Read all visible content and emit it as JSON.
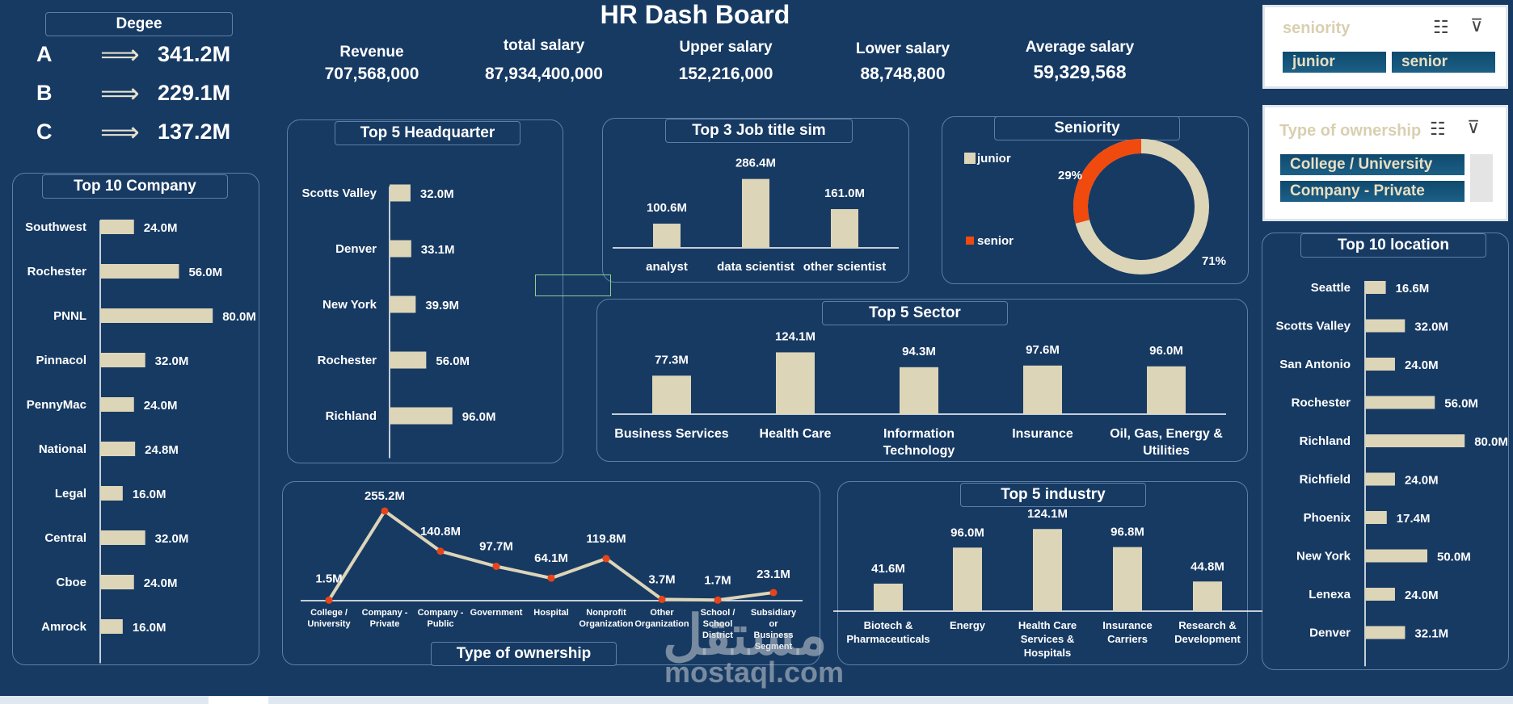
{
  "title": "HR Dash Board",
  "degree": {
    "title": "Degee",
    "arrow": "⟹",
    "rows": [
      {
        "grade": "A",
        "value": "341.2M"
      },
      {
        "grade": "B",
        "value": "229.1M"
      },
      {
        "grade": "C",
        "value": "137.2M"
      }
    ]
  },
  "kpis": [
    {
      "label": "Revenue",
      "value": "707,568,000"
    },
    {
      "label": "total salary",
      "value": "87,934,400,000"
    },
    {
      "label": "Upper salary",
      "value": "152,216,000"
    },
    {
      "label": "Lower salary",
      "value": "88,748,800"
    },
    {
      "label": "Average salary",
      "value": "59,329,568"
    }
  ],
  "slicers": {
    "seniority": {
      "title": "seniority",
      "options": [
        "junior",
        "senior"
      ]
    },
    "ownership": {
      "title": "Type of ownership",
      "options": [
        "College / University",
        "Company - Private"
      ]
    }
  },
  "colors": {
    "bar": "#ddd5b8",
    "accent": "#f04a0e",
    "background": "#173a63",
    "border": "#5d7fa6",
    "marker": "#e8441a"
  },
  "watermark": {
    "arabic": "مستقل",
    "latin": "mostaql.com"
  },
  "chart_data": [
    {
      "id": "company",
      "type": "bar",
      "orientation": "horizontal",
      "title": "Top 10 Company",
      "categories": [
        "Southwest",
        "Rochester",
        "PNNL",
        "Pinnacol",
        "PennyMac",
        "National",
        "Legal",
        "Central",
        "Cboe",
        "Amrock"
      ],
      "values": [
        24.0,
        56.0,
        80.0,
        32.0,
        24.0,
        24.8,
        16.0,
        32.0,
        24.0,
        16.0
      ],
      "labels": [
        "24.0M",
        "56.0M",
        "80.0M",
        "32.0M",
        "24.0M",
        "24.8M",
        "16.0M",
        "32.0M",
        "24.0M",
        "16.0M"
      ]
    },
    {
      "id": "hq",
      "type": "bar",
      "orientation": "horizontal",
      "title": "Top 5 Headquarter",
      "categories": [
        "Scotts Valley",
        "Denver",
        "New York",
        "Rochester",
        "Richland"
      ],
      "values": [
        32.0,
        33.1,
        39.9,
        56.0,
        96.0
      ],
      "labels": [
        "32.0M",
        "33.1M",
        "39.9M",
        "56.0M",
        "96.0M"
      ]
    },
    {
      "id": "job",
      "type": "bar",
      "title": "Top 3 Job title sim",
      "categories": [
        "analyst",
        "data scientist",
        "other scientist"
      ],
      "values": [
        100.6,
        286.4,
        161.0
      ],
      "labels": [
        "100.6M",
        "286.4M",
        "161.0M"
      ]
    },
    {
      "id": "seniority",
      "type": "pie",
      "title": "Seniority",
      "categories": [
        "junior",
        "senior"
      ],
      "values": [
        71,
        29
      ],
      "labels": [
        "71%",
        "29%"
      ]
    },
    {
      "id": "sector",
      "type": "bar",
      "title": "Top 5 Sector",
      "categories": [
        "Business Services",
        "Health Care",
        "Information Technology",
        "Insurance",
        "Oil, Gas, Energy & Utilities"
      ],
      "values": [
        77.3,
        124.1,
        94.3,
        97.6,
        96.0
      ],
      "labels": [
        "77.3M",
        "124.1M",
        "94.3M",
        "97.6M",
        "96.0M"
      ]
    },
    {
      "id": "ownership",
      "type": "line",
      "title": "Type of ownership",
      "categories": [
        "College / University",
        "Company - Private",
        "Company - Public",
        "Government",
        "Hospital",
        "Nonprofit Organization",
        "Other Organization",
        "School / School District",
        "Subsidiary or Business Segment"
      ],
      "values": [
        1.5,
        255.2,
        140.8,
        97.7,
        64.1,
        119.8,
        3.7,
        1.7,
        23.1
      ],
      "labels": [
        "1.5M",
        "255.2M",
        "140.8M",
        "97.7M",
        "64.1M",
        "119.8M",
        "3.7M",
        "1.7M",
        "23.1M"
      ]
    },
    {
      "id": "industry",
      "type": "bar",
      "title": "Top 5 industry",
      "categories": [
        "Biotech & Pharmaceuticals",
        "Energy",
        "Health Care Services & Hospitals",
        "Insurance Carriers",
        "Research & Development"
      ],
      "values": [
        41.6,
        96.0,
        124.1,
        96.8,
        44.8
      ],
      "labels": [
        "41.6M",
        "96.0M",
        "124.1M",
        "96.8M",
        "44.8M"
      ]
    },
    {
      "id": "location",
      "type": "bar",
      "orientation": "horizontal",
      "title": "Top 10 location",
      "categories": [
        "Seattle",
        "Scotts Valley",
        "San Antonio",
        "Rochester",
        "Richland",
        "Richfield",
        "Phoenix",
        "New York",
        "Lenexa",
        "Denver"
      ],
      "values": [
        16.6,
        32.0,
        24.0,
        56.0,
        80.0,
        24.0,
        17.4,
        50.0,
        24.0,
        32.1
      ],
      "labels": [
        "16.6M",
        "32.0M",
        "24.0M",
        "56.0M",
        "80.0M",
        "24.0M",
        "17.4M",
        "50.0M",
        "24.0M",
        "32.1M"
      ]
    }
  ]
}
